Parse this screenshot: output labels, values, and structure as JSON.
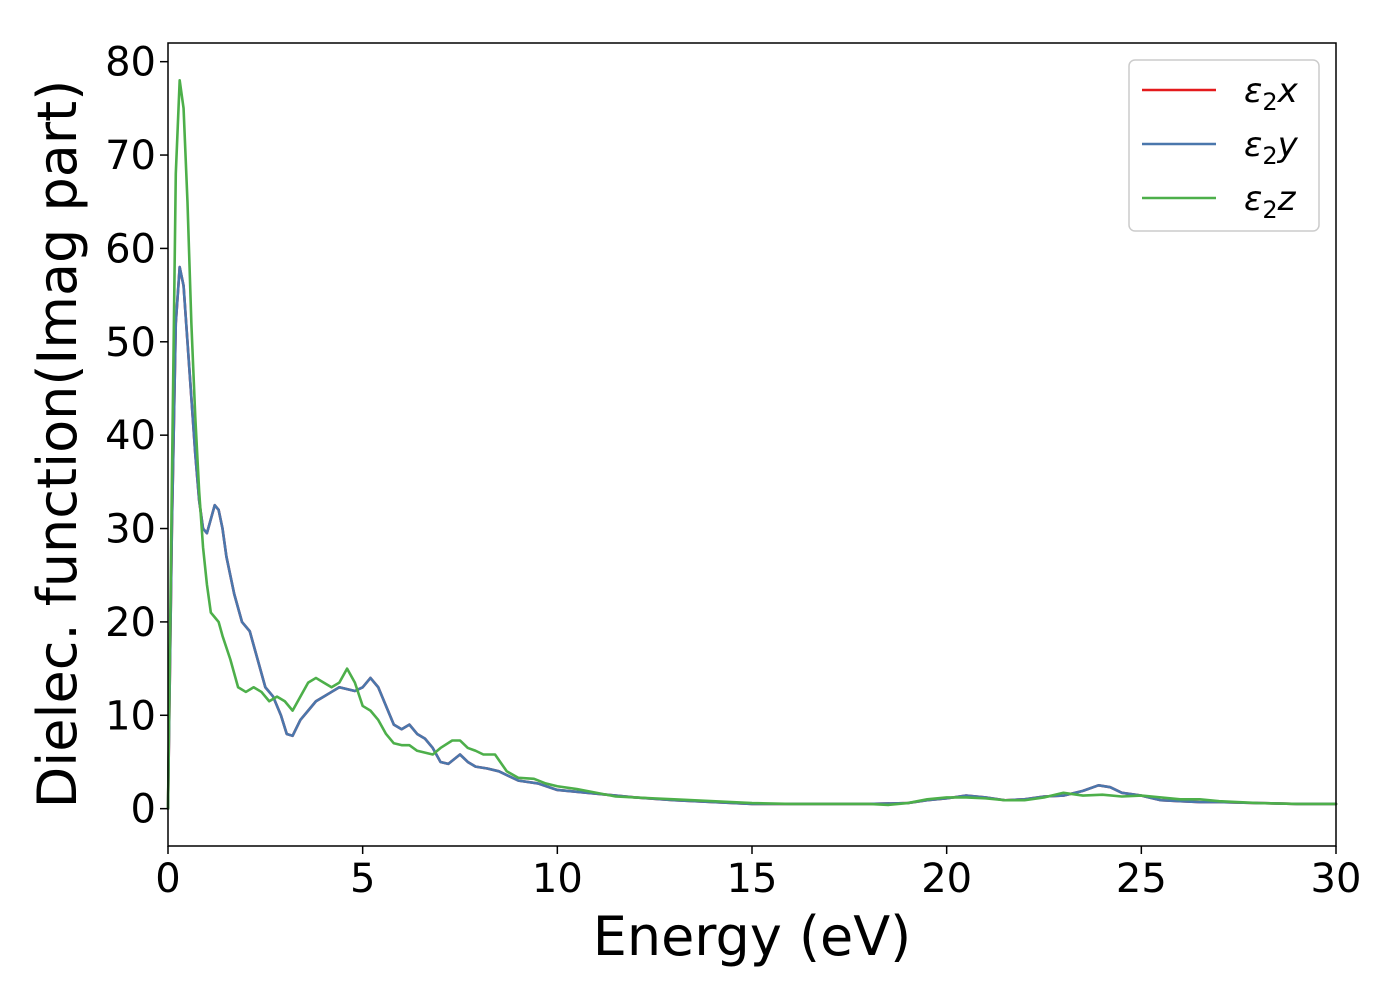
{
  "chart_data": {
    "type": "line",
    "title": "",
    "xlabel": "Energy (eV)",
    "ylabel": "Dielec. function(Imag part)",
    "xlim": [
      0,
      30
    ],
    "ylim": [
      -4,
      82
    ],
    "x_ticks": [
      0,
      5,
      10,
      15,
      20,
      25,
      30
    ],
    "y_ticks": [
      0,
      10,
      20,
      30,
      40,
      50,
      60,
      70,
      80
    ],
    "x_tick_labels": [
      "0",
      "5",
      "10",
      "15",
      "20",
      "25",
      "30"
    ],
    "y_tick_labels": [
      "0",
      "10",
      "20",
      "30",
      "40",
      "50",
      "60",
      "70",
      "80"
    ],
    "grid": false,
    "legend_position": "top-right",
    "series": [
      {
        "name": "ε₂x",
        "label_base": "ε",
        "label_sub": "2",
        "label_suffix": "x",
        "color": "#e41a1c",
        "points": [
          [
            0,
            0
          ],
          [
            0.1,
            30
          ],
          [
            0.2,
            52
          ],
          [
            0.3,
            58
          ],
          [
            0.4,
            56
          ],
          [
            0.5,
            50
          ],
          [
            0.6,
            44
          ],
          [
            0.7,
            38
          ],
          [
            0.8,
            33
          ],
          [
            0.9,
            30
          ],
          [
            1.0,
            29.5
          ],
          [
            1.1,
            31
          ],
          [
            1.2,
            32.5
          ],
          [
            1.3,
            32
          ],
          [
            1.4,
            30
          ],
          [
            1.5,
            27
          ],
          [
            1.7,
            23
          ],
          [
            1.9,
            20
          ],
          [
            2.1,
            19
          ],
          [
            2.3,
            16
          ],
          [
            2.5,
            13
          ],
          [
            2.7,
            12
          ],
          [
            2.9,
            10
          ],
          [
            3.05,
            8
          ],
          [
            3.2,
            7.8
          ],
          [
            3.4,
            9.5
          ],
          [
            3.6,
            10.5
          ],
          [
            3.8,
            11.5
          ],
          [
            4.0,
            12
          ],
          [
            4.2,
            12.5
          ],
          [
            4.4,
            13
          ],
          [
            4.6,
            12.8
          ],
          [
            4.8,
            12.6
          ],
          [
            5.0,
            13
          ],
          [
            5.2,
            14
          ],
          [
            5.4,
            13
          ],
          [
            5.6,
            11
          ],
          [
            5.8,
            9
          ],
          [
            6.0,
            8.5
          ],
          [
            6.2,
            9
          ],
          [
            6.4,
            8
          ],
          [
            6.6,
            7.5
          ],
          [
            6.8,
            6.5
          ],
          [
            7.0,
            5
          ],
          [
            7.2,
            4.8
          ],
          [
            7.5,
            5.8
          ],
          [
            7.7,
            5
          ],
          [
            7.9,
            4.5
          ],
          [
            8.2,
            4.3
          ],
          [
            8.5,
            4
          ],
          [
            9.0,
            3
          ],
          [
            9.5,
            2.7
          ],
          [
            10.0,
            2
          ],
          [
            10.5,
            1.8
          ],
          [
            11.0,
            1.6
          ],
          [
            11.5,
            1.4
          ],
          [
            12.0,
            1.2
          ],
          [
            13.0,
            0.9
          ],
          [
            14.0,
            0.7
          ],
          [
            15.0,
            0.5
          ],
          [
            16.0,
            0.5
          ],
          [
            17.0,
            0.5
          ],
          [
            18.0,
            0.5
          ],
          [
            19.0,
            0.6
          ],
          [
            19.5,
            0.9
          ],
          [
            20.0,
            1.1
          ],
          [
            20.5,
            1.4
          ],
          [
            21.0,
            1.2
          ],
          [
            21.5,
            0.9
          ],
          [
            22.0,
            1.0
          ],
          [
            22.5,
            1.3
          ],
          [
            23.0,
            1.4
          ],
          [
            23.5,
            1.9
          ],
          [
            23.9,
            2.5
          ],
          [
            24.2,
            2.3
          ],
          [
            24.5,
            1.7
          ],
          [
            25.0,
            1.4
          ],
          [
            25.5,
            0.9
          ],
          [
            26.0,
            0.8
          ],
          [
            26.5,
            0.7
          ],
          [
            27.0,
            0.7
          ],
          [
            28.0,
            0.6
          ],
          [
            29.0,
            0.5
          ],
          [
            30.0,
            0.5
          ]
        ]
      },
      {
        "name": "ε₂y",
        "label_base": "ε",
        "label_sub": "2",
        "label_suffix": "y",
        "color": "#4a77ac",
        "points": [
          [
            0,
            0
          ],
          [
            0.1,
            30
          ],
          [
            0.2,
            52
          ],
          [
            0.3,
            58
          ],
          [
            0.4,
            56
          ],
          [
            0.5,
            50
          ],
          [
            0.6,
            44
          ],
          [
            0.7,
            38
          ],
          [
            0.8,
            33
          ],
          [
            0.9,
            30
          ],
          [
            1.0,
            29.5
          ],
          [
            1.1,
            31
          ],
          [
            1.2,
            32.5
          ],
          [
            1.3,
            32
          ],
          [
            1.4,
            30
          ],
          [
            1.5,
            27
          ],
          [
            1.7,
            23
          ],
          [
            1.9,
            20
          ],
          [
            2.1,
            19
          ],
          [
            2.3,
            16
          ],
          [
            2.5,
            13
          ],
          [
            2.7,
            12
          ],
          [
            2.9,
            10
          ],
          [
            3.05,
            8
          ],
          [
            3.2,
            7.8
          ],
          [
            3.4,
            9.5
          ],
          [
            3.6,
            10.5
          ],
          [
            3.8,
            11.5
          ],
          [
            4.0,
            12
          ],
          [
            4.2,
            12.5
          ],
          [
            4.4,
            13
          ],
          [
            4.6,
            12.8
          ],
          [
            4.8,
            12.6
          ],
          [
            5.0,
            13
          ],
          [
            5.2,
            14
          ],
          [
            5.4,
            13
          ],
          [
            5.6,
            11
          ],
          [
            5.8,
            9
          ],
          [
            6.0,
            8.5
          ],
          [
            6.2,
            9
          ],
          [
            6.4,
            8
          ],
          [
            6.6,
            7.5
          ],
          [
            6.8,
            6.5
          ],
          [
            7.0,
            5
          ],
          [
            7.2,
            4.8
          ],
          [
            7.5,
            5.8
          ],
          [
            7.7,
            5
          ],
          [
            7.9,
            4.5
          ],
          [
            8.2,
            4.3
          ],
          [
            8.5,
            4
          ],
          [
            9.0,
            3
          ],
          [
            9.5,
            2.7
          ],
          [
            10.0,
            2
          ],
          [
            10.5,
            1.8
          ],
          [
            11.0,
            1.6
          ],
          [
            11.5,
            1.4
          ],
          [
            12.0,
            1.2
          ],
          [
            13.0,
            0.9
          ],
          [
            14.0,
            0.7
          ],
          [
            15.0,
            0.5
          ],
          [
            16.0,
            0.5
          ],
          [
            17.0,
            0.5
          ],
          [
            18.0,
            0.5
          ],
          [
            19.0,
            0.6
          ],
          [
            19.5,
            0.9
          ],
          [
            20.0,
            1.1
          ],
          [
            20.5,
            1.4
          ],
          [
            21.0,
            1.2
          ],
          [
            21.5,
            0.9
          ],
          [
            22.0,
            1.0
          ],
          [
            22.5,
            1.3
          ],
          [
            23.0,
            1.4
          ],
          [
            23.5,
            1.9
          ],
          [
            23.9,
            2.5
          ],
          [
            24.2,
            2.3
          ],
          [
            24.5,
            1.7
          ],
          [
            25.0,
            1.4
          ],
          [
            25.5,
            0.9
          ],
          [
            26.0,
            0.8
          ],
          [
            26.5,
            0.7
          ],
          [
            27.0,
            0.7
          ],
          [
            28.0,
            0.6
          ],
          [
            29.0,
            0.5
          ],
          [
            30.0,
            0.5
          ]
        ]
      },
      {
        "name": "ε₂z",
        "label_base": "ε",
        "label_sub": "2",
        "label_suffix": "z",
        "color": "#4daf4a",
        "points": [
          [
            0,
            0
          ],
          [
            0.1,
            35
          ],
          [
            0.2,
            68
          ],
          [
            0.3,
            78
          ],
          [
            0.4,
            75
          ],
          [
            0.5,
            65
          ],
          [
            0.6,
            52
          ],
          [
            0.7,
            42
          ],
          [
            0.8,
            34
          ],
          [
            0.9,
            28
          ],
          [
            1.0,
            24
          ],
          [
            1.1,
            21
          ],
          [
            1.2,
            20.5
          ],
          [
            1.3,
            20
          ],
          [
            1.4,
            18.5
          ],
          [
            1.6,
            16
          ],
          [
            1.8,
            13
          ],
          [
            2.0,
            12.5
          ],
          [
            2.2,
            13
          ],
          [
            2.4,
            12.5
          ],
          [
            2.6,
            11.5
          ],
          [
            2.8,
            12
          ],
          [
            3.0,
            11.5
          ],
          [
            3.2,
            10.5
          ],
          [
            3.4,
            12
          ],
          [
            3.6,
            13.5
          ],
          [
            3.8,
            14
          ],
          [
            4.0,
            13.5
          ],
          [
            4.2,
            13
          ],
          [
            4.4,
            13.5
          ],
          [
            4.6,
            15
          ],
          [
            4.8,
            13.5
          ],
          [
            5.0,
            11
          ],
          [
            5.2,
            10.5
          ],
          [
            5.4,
            9.5
          ],
          [
            5.6,
            8
          ],
          [
            5.8,
            7
          ],
          [
            6.0,
            6.8
          ],
          [
            6.2,
            6.8
          ],
          [
            6.4,
            6.2
          ],
          [
            6.6,
            6
          ],
          [
            6.8,
            5.8
          ],
          [
            7.0,
            6.5
          ],
          [
            7.3,
            7.3
          ],
          [
            7.5,
            7.3
          ],
          [
            7.7,
            6.5
          ],
          [
            7.9,
            6.2
          ],
          [
            8.1,
            5.8
          ],
          [
            8.4,
            5.8
          ],
          [
            8.7,
            4
          ],
          [
            9.0,
            3.3
          ],
          [
            9.4,
            3.2
          ],
          [
            9.7,
            2.7
          ],
          [
            10.0,
            2.4
          ],
          [
            10.5,
            2.1
          ],
          [
            11.0,
            1.7
          ],
          [
            11.5,
            1.3
          ],
          [
            12.0,
            1.2
          ],
          [
            12.5,
            1.1
          ],
          [
            13.0,
            1.0
          ],
          [
            14.0,
            0.8
          ],
          [
            15.0,
            0.6
          ],
          [
            16.0,
            0.5
          ],
          [
            17.0,
            0.5
          ],
          [
            18.0,
            0.5
          ],
          [
            18.5,
            0.4
          ],
          [
            19.0,
            0.6
          ],
          [
            19.5,
            1.0
          ],
          [
            20.0,
            1.2
          ],
          [
            20.5,
            1.2
          ],
          [
            21.0,
            1.1
          ],
          [
            21.5,
            0.9
          ],
          [
            22.0,
            0.9
          ],
          [
            22.5,
            1.2
          ],
          [
            23.0,
            1.7
          ],
          [
            23.5,
            1.4
          ],
          [
            24.0,
            1.5
          ],
          [
            24.5,
            1.3
          ],
          [
            25.0,
            1.4
          ],
          [
            25.5,
            1.2
          ],
          [
            26.0,
            1.0
          ],
          [
            26.5,
            1.0
          ],
          [
            27.0,
            0.8
          ],
          [
            28.0,
            0.6
          ],
          [
            29.0,
            0.5
          ],
          [
            30.0,
            0.5
          ]
        ]
      }
    ]
  }
}
